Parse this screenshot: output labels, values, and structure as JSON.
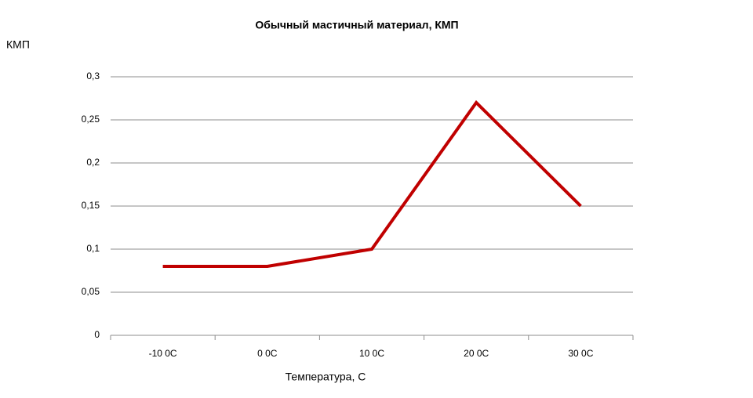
{
  "chart_data": {
    "type": "line",
    "title": "Обычный мастичный материал, КМП",
    "y_label": "КМП",
    "x_label": "Температура, С",
    "categories": [
      "-10 0С",
      "0 0С",
      "10 0С",
      "20 0С",
      "30 0С"
    ],
    "series": [
      {
        "name": "КМП",
        "color": "#c00000",
        "values": [
          0.08,
          0.08,
          0.1,
          0.27,
          0.15
        ]
      }
    ],
    "ylim": [
      0,
      0.3
    ],
    "yticks": [
      0,
      {
        "value": 0.05,
        "label": "0,05"
      },
      {
        "value": 0.1,
        "label": "0,1"
      },
      {
        "value": 0.15,
        "label": "0,15"
      },
      {
        "value": 0.2,
        "label": "0,2"
      },
      {
        "value": 0.25,
        "label": "0,25"
      },
      {
        "value": 0.3,
        "label": "0,3"
      }
    ],
    "grid": true
  }
}
